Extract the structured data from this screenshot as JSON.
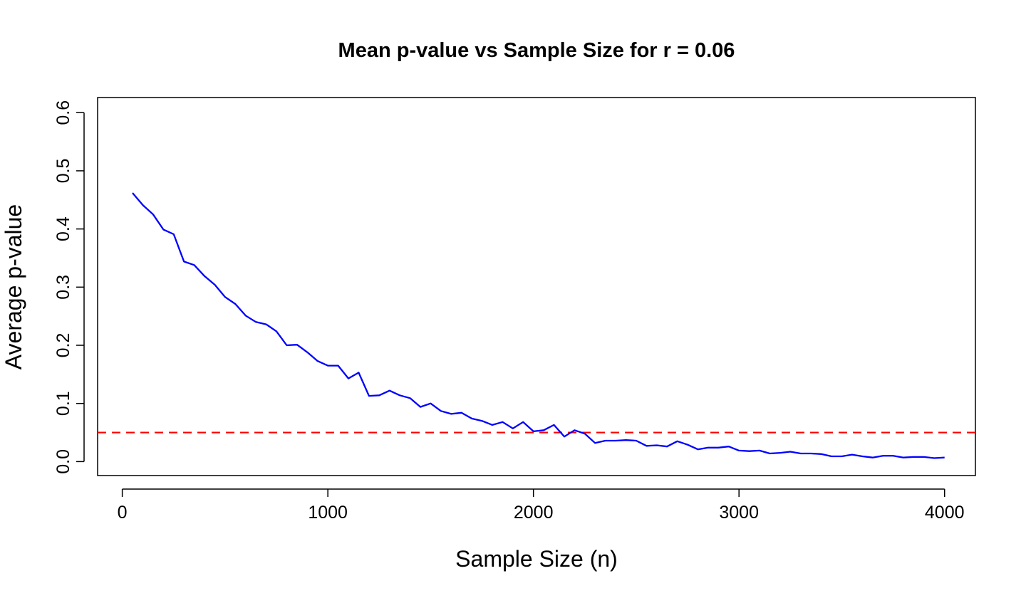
{
  "chart_data": {
    "type": "line",
    "title": "Mean p-value vs Sample Size for r = 0.06",
    "xlabel": "Sample Size (n)",
    "ylabel": "Average p-value",
    "xlim": [
      -120,
      4150
    ],
    "ylim": [
      -0.024,
      0.626
    ],
    "x_ticks": [
      0,
      1000,
      2000,
      3000,
      4000
    ],
    "x_tick_labels": [
      "0",
      "1000",
      "2000",
      "3000",
      "4000"
    ],
    "y_ticks": [
      0.0,
      0.1,
      0.2,
      0.3,
      0.4,
      0.5,
      0.6
    ],
    "y_tick_labels": [
      "0.0",
      "0.1",
      "0.2",
      "0.3",
      "0.4",
      "0.5",
      "0.6"
    ],
    "grid": false,
    "legend": "none",
    "series": [
      {
        "color": "#0000ff",
        "x": [
          50,
          100,
          150,
          200,
          250,
          300,
          350,
          400,
          450,
          500,
          550,
          600,
          650,
          700,
          750,
          800,
          850,
          900,
          950,
          1000,
          1050,
          1100,
          1150,
          1200,
          1250,
          1300,
          1350,
          1400,
          1450,
          1500,
          1550,
          1600,
          1650,
          1700,
          1750,
          1800,
          1850,
          1900,
          1950,
          2000,
          2050,
          2100,
          2150,
          2200,
          2250,
          2300,
          2350,
          2400,
          2450,
          2500,
          2550,
          2600,
          2650,
          2700,
          2750,
          2800,
          2850,
          2900,
          2950,
          3000,
          3050,
          3100,
          3150,
          3200,
          3250,
          3300,
          3350,
          3400,
          3450,
          3500,
          3550,
          3600,
          3650,
          3700,
          3750,
          3800,
          3850,
          3900,
          3950,
          4000
        ],
        "y": [
          0.462,
          0.441,
          0.425,
          0.399,
          0.391,
          0.344,
          0.338,
          0.319,
          0.304,
          0.283,
          0.271,
          0.251,
          0.24,
          0.236,
          0.224,
          0.2,
          0.201,
          0.188,
          0.173,
          0.165,
          0.165,
          0.143,
          0.153,
          0.113,
          0.114,
          0.122,
          0.114,
          0.109,
          0.094,
          0.1,
          0.087,
          0.082,
          0.084,
          0.074,
          0.07,
          0.063,
          0.068,
          0.057,
          0.068,
          0.052,
          0.054,
          0.063,
          0.043,
          0.054,
          0.048,
          0.032,
          0.036,
          0.036,
          0.037,
          0.036,
          0.027,
          0.028,
          0.026,
          0.035,
          0.029,
          0.021,
          0.024,
          0.024,
          0.026,
          0.019,
          0.018,
          0.019,
          0.014,
          0.015,
          0.017,
          0.014,
          0.014,
          0.013,
          0.009,
          0.009,
          0.012,
          0.009,
          0.007,
          0.01,
          0.01,
          0.007,
          0.008,
          0.008,
          0.006,
          0.007
        ]
      }
    ],
    "reference_line": {
      "y": 0.05,
      "color": "#ff0000",
      "style": "dashed"
    }
  }
}
